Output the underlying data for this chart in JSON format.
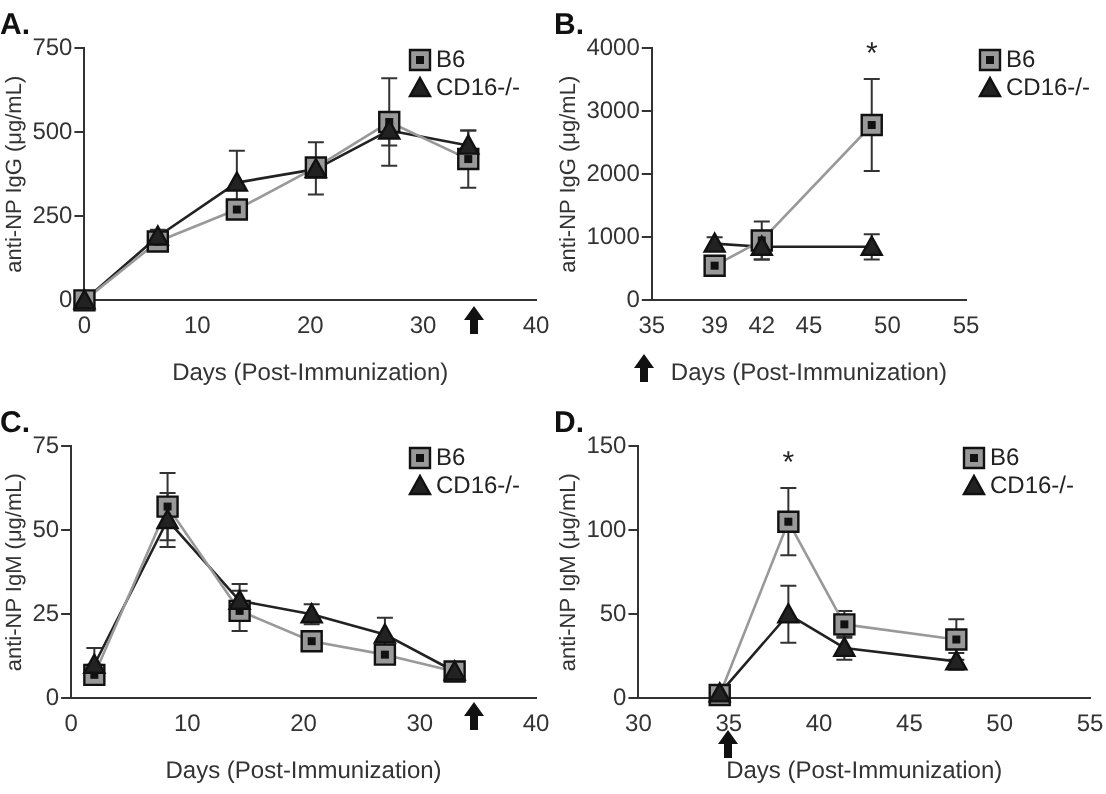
{
  "chart_data": [
    {
      "type": "line",
      "title": "A.",
      "xlabel": "Days (Post-Immunization)",
      "ylabel": "anti-NP IgG (μg/mL)",
      "xlim": [
        0,
        40
      ],
      "xticks": [
        0,
        10,
        20,
        30,
        40
      ],
      "ylim": [
        0,
        750
      ],
      "yticks": [
        0,
        250,
        500,
        750
      ],
      "legend": "top right",
      "grid": false,
      "series": [
        {
          "name": "B6",
          "color": "#999999",
          "marker": "square",
          "x": [
            0,
            6.5,
            13.5,
            20.5,
            27,
            34
          ],
          "values": [
            0,
            175,
            270,
            395,
            530,
            420
          ],
          "errors": [
            null,
            null,
            null,
            [
              315,
              470
            ],
            130,
            85
          ]
        },
        {
          "name": "CD16-/-",
          "color": "#222222",
          "marker": "triangle",
          "x": [
            0,
            6.5,
            13.5,
            20.5,
            27,
            34
          ],
          "values": [
            0,
            190,
            350,
            390,
            505,
            460
          ],
          "errors": [
            null,
            20,
            95,
            null,
            45,
            45
          ]
        }
      ]
    },
    {
      "type": "line",
      "title": "B.",
      "xlabel": "Days (Post-Immunization)",
      "ylabel": "anti-NP IgG (μg/mL)",
      "xlim": [
        35,
        55
      ],
      "xticks": [
        35,
        39,
        42,
        45,
        50,
        55
      ],
      "ylim": [
        0,
        4000
      ],
      "yticks": [
        0,
        1000,
        2000,
        3000,
        4000
      ],
      "legend": "right",
      "grid": false,
      "annotations": [
        "*"
      ],
      "series": [
        {
          "name": "B6",
          "color": "#999999",
          "marker": "square",
          "x": [
            39,
            42,
            49
          ],
          "values": [
            550,
            950,
            2780
          ],
          "errors": [
            50,
            300,
            730
          ]
        },
        {
          "name": "CD16-/-",
          "color": "#222222",
          "marker": "triangle",
          "x": [
            39,
            42,
            49
          ],
          "values": [
            900,
            850,
            850
          ],
          "errors": [
            100,
            200,
            200
          ]
        }
      ]
    },
    {
      "type": "line",
      "title": "C.",
      "xlabel": "Days (Post-Immunization)",
      "ylabel": "anti-NP IgM (μg/mL)",
      "xlim": [
        0,
        40
      ],
      "xticks": [
        0,
        10,
        20,
        30,
        40
      ],
      "ylim": [
        0,
        75
      ],
      "yticks": [
        0,
        25,
        50,
        75
      ],
      "legend": "top right",
      "grid": false,
      "series": [
        {
          "name": "B6",
          "color": "#999999",
          "marker": "square",
          "x": [
            2,
            8.3,
            14.5,
            20.7,
            27,
            33
          ],
          "values": [
            7,
            57,
            26,
            17,
            13,
            8
          ],
          "errors": [
            3,
            10,
            6,
            null,
            null,
            null
          ]
        },
        {
          "name": "CD16-/-",
          "color": "#222222",
          "marker": "triangle",
          "x": [
            2,
            8.3,
            14.5,
            20.7,
            27,
            33
          ],
          "values": [
            10,
            53,
            29,
            25,
            19,
            8
          ],
          "errors": [
            5,
            8,
            5,
            3,
            5,
            1
          ]
        }
      ]
    },
    {
      "type": "line",
      "title": "D.",
      "xlabel": "Days (Post-Immunization)",
      "ylabel": "anti-NP IgM (μg/mL)",
      "xlim": [
        30,
        55
      ],
      "xticks": [
        30,
        35,
        40,
        45,
        50,
        55
      ],
      "ylim": [
        0,
        150
      ],
      "yticks": [
        0,
        50,
        100,
        150
      ],
      "legend": "top right",
      "grid": false,
      "annotations": [
        "*"
      ],
      "series": [
        {
          "name": "B6",
          "color": "#999999",
          "marker": "square",
          "x": [
            34.5,
            38.3,
            41.4,
            47.6
          ],
          "values": [
            2,
            105,
            44,
            35
          ],
          "errors": [
            1,
            20,
            8,
            12
          ]
        },
        {
          "name": "CD16-/-",
          "color": "#222222",
          "marker": "triangle",
          "x": [
            34.5,
            38.3,
            41.4,
            47.6
          ],
          "values": [
            3,
            50,
            30,
            22
          ],
          "errors": [
            1,
            17,
            7,
            5
          ]
        }
      ]
    }
  ]
}
